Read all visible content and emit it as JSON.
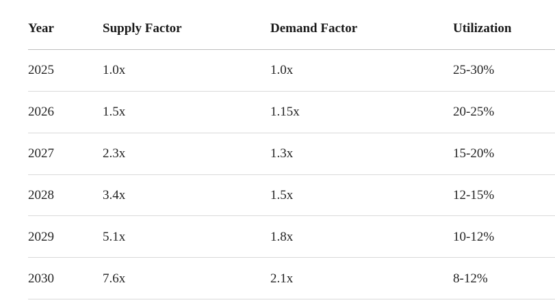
{
  "table": {
    "header": [
      "Year",
      "Supply Factor",
      "Demand Factor",
      "Utilization"
    ],
    "rows": [
      [
        "2025",
        "1.0x",
        "1.0x",
        "25-30%"
      ],
      [
        "2026",
        "1.5x",
        "1.15x",
        "20-25%"
      ],
      [
        "2027",
        "2.3x",
        "1.3x",
        "15-20%"
      ],
      [
        "2028",
        "3.4x",
        "1.5x",
        "12-15%"
      ],
      [
        "2029",
        "5.1x",
        "1.8x",
        "10-12%"
      ],
      [
        "2030",
        "7.6x",
        "2.1x",
        "8-12%"
      ]
    ]
  }
}
